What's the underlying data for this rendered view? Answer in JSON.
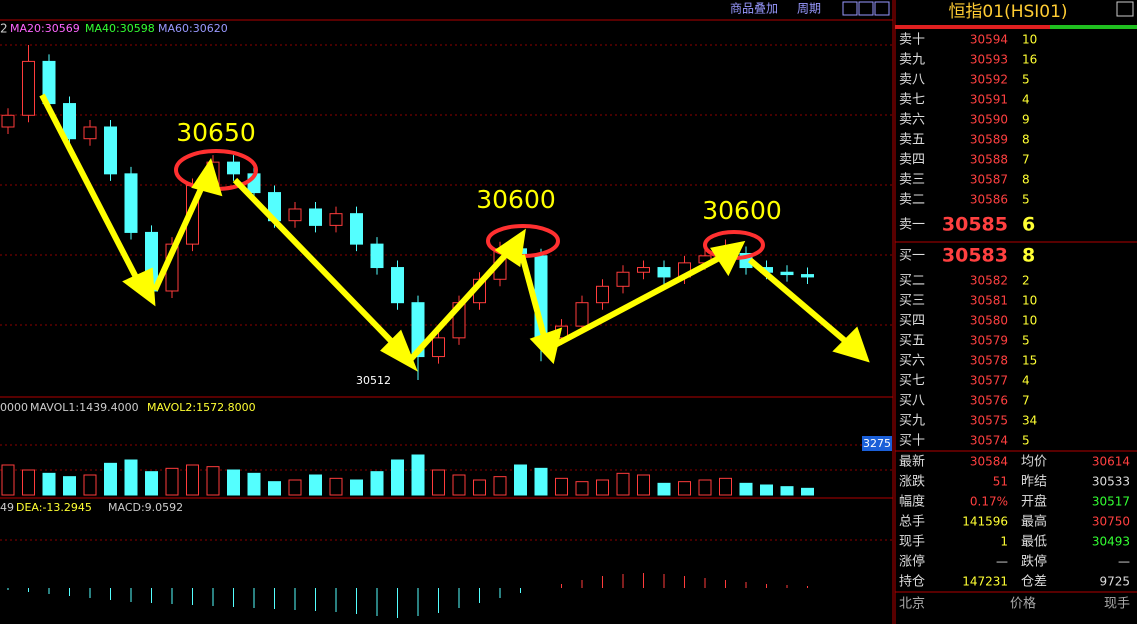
{
  "toolbar": {
    "overlay": "商品叠加",
    "period": "周期"
  },
  "chart_data": {
    "type": "candlestick",
    "ma_legend": {
      "lead": "2",
      "ma20": "MA20:30569",
      "ma40": "MA40:30598",
      "ma60": "MA60:30620"
    },
    "vol_legend": {
      "lead": "0000",
      "mavol1": "MAVOL1:1439.4000",
      "mavol2": "MAVOL2:1572.8000"
    },
    "macd_legend": {
      "lead": "49",
      "dea": "DEA:-13.2945",
      "macd": "MACD:9.0592"
    },
    "vol_tag": "3275",
    "annotations": [
      "30650",
      "30600",
      "30600"
    ],
    "low_label": "30512",
    "up_color": "#ff3c3c",
    "down_color": "#54ffff",
    "candles": [
      [
        30620,
        30628,
        30617,
        30625
      ],
      [
        30625,
        30655,
        30622,
        30648
      ],
      [
        30648,
        30651,
        30627,
        30630
      ],
      [
        30630,
        30633,
        30612,
        30615
      ],
      [
        30615,
        30623,
        30612,
        30620
      ],
      [
        30620,
        30623,
        30597,
        30600
      ],
      [
        30600,
        30603,
        30572,
        30575
      ],
      [
        30575,
        30578,
        30545,
        30550
      ],
      [
        30550,
        30573,
        30547,
        30570
      ],
      [
        30570,
        30598,
        30567,
        30595
      ],
      [
        30595,
        30608,
        30592,
        30605
      ],
      [
        30605,
        30608,
        30597,
        30600
      ],
      [
        30600,
        30603,
        30589,
        30592
      ],
      [
        30592,
        30595,
        30577,
        30580
      ],
      [
        30580,
        30588,
        30577,
        30585
      ],
      [
        30585,
        30588,
        30575,
        30578
      ],
      [
        30578,
        30586,
        30575,
        30583
      ],
      [
        30583,
        30586,
        30567,
        30570
      ],
      [
        30570,
        30573,
        30557,
        30560
      ],
      [
        30560,
        30563,
        30542,
        30545
      ],
      [
        30545,
        30548,
        30512,
        30522
      ],
      [
        30522,
        30533,
        30519,
        30530
      ],
      [
        30530,
        30548,
        30527,
        30545
      ],
      [
        30545,
        30558,
        30542,
        30555
      ],
      [
        30555,
        30571,
        30552,
        30568
      ],
      [
        30568,
        30571,
        30562,
        30565
      ],
      [
        30565,
        30568,
        30520,
        30530
      ],
      [
        30530,
        30538,
        30527,
        30535
      ],
      [
        30535,
        30548,
        30532,
        30545
      ],
      [
        30545,
        30555,
        30542,
        30552
      ],
      [
        30552,
        30561,
        30549,
        30558
      ],
      [
        30558,
        30563,
        30555,
        30560
      ],
      [
        30560,
        30563,
        30553,
        30556
      ],
      [
        30556,
        30565,
        30553,
        30562
      ],
      [
        30562,
        30568,
        30559,
        30565
      ],
      [
        30565,
        30572,
        30562,
        30566
      ],
      [
        30566,
        30569,
        30557,
        30560
      ],
      [
        30560,
        30563,
        30555,
        30558
      ],
      [
        30558,
        30561,
        30554,
        30557
      ],
      [
        30557,
        30560,
        30553,
        30556
      ]
    ],
    "volume": [
      1800,
      1500,
      1300,
      1100,
      1200,
      1900,
      2100,
      1400,
      1600,
      1800,
      1700,
      1500,
      1300,
      800,
      900,
      1200,
      1000,
      900,
      1400,
      2100,
      2400,
      1500,
      1200,
      900,
      1100,
      1800,
      1600,
      1000,
      800,
      900,
      1300,
      1200,
      700,
      800,
      900,
      1000,
      700,
      600,
      500,
      400
    ],
    "macd": [
      -2,
      -4,
      -6,
      -8,
      -10,
      -12,
      -14,
      -15,
      -16,
      -17,
      -18,
      -19,
      -20,
      -21,
      -22,
      -23,
      -24,
      -26,
      -28,
      -30,
      -28,
      -25,
      -20,
      -15,
      -10,
      -5,
      0,
      4,
      8,
      12,
      14,
      15,
      14,
      12,
      10,
      8,
      6,
      4,
      3,
      2
    ]
  },
  "quote": {
    "title": "恒指01(HSI01)",
    "asks": [
      [
        "卖十",
        "30594",
        "10"
      ],
      [
        "卖九",
        "30593",
        "16"
      ],
      [
        "卖八",
        "30592",
        "5"
      ],
      [
        "卖七",
        "30591",
        "4"
      ],
      [
        "卖六",
        "30590",
        "9"
      ],
      [
        "卖五",
        "30589",
        "8"
      ],
      [
        "卖四",
        "30588",
        "7"
      ],
      [
        "卖三",
        "30587",
        "8"
      ],
      [
        "卖二",
        "30586",
        "5"
      ],
      [
        "卖一",
        "30585",
        "6"
      ]
    ],
    "bids": [
      [
        "买一",
        "30583",
        "8"
      ],
      [
        "买二",
        "30582",
        "2"
      ],
      [
        "买三",
        "30581",
        "10"
      ],
      [
        "买四",
        "30580",
        "10"
      ],
      [
        "买五",
        "30579",
        "5"
      ],
      [
        "买六",
        "30578",
        "15"
      ],
      [
        "买七",
        "30577",
        "4"
      ],
      [
        "买八",
        "30576",
        "7"
      ],
      [
        "买九",
        "30575",
        "34"
      ],
      [
        "买十",
        "30574",
        "5"
      ]
    ],
    "stats": [
      [
        "最新",
        "30584",
        "均价",
        "30614"
      ],
      [
        "涨跌",
        "51",
        "昨结",
        "30533"
      ],
      [
        "幅度",
        "0.17%",
        "开盘",
        "30517"
      ],
      [
        "总手",
        "141596",
        "最高",
        "30750"
      ],
      [
        "现手",
        "1",
        "最低",
        "30493"
      ],
      [
        "涨停",
        "—",
        "跌停",
        "—"
      ],
      [
        "持仓",
        "147231",
        "仓差",
        "9725"
      ]
    ],
    "footer": [
      "北京",
      "价格",
      "现手"
    ]
  }
}
